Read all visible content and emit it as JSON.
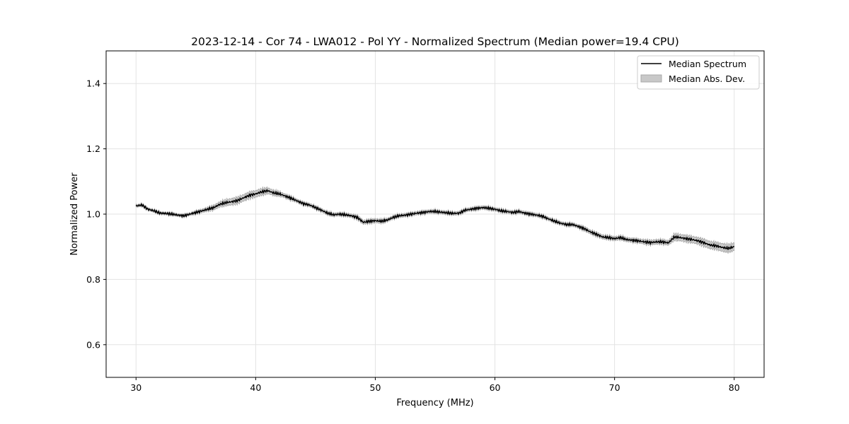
{
  "chart_data": {
    "type": "line",
    "title": "2023-12-14 - Cor 74 - LWA012 - Pol YY - Normalized Spectrum (Median power=19.4 CPU)",
    "xlabel": "Frequency (MHz)",
    "ylabel": "Normalized Power",
    "xlim": [
      27.5,
      82.5
    ],
    "ylim": [
      0.5,
      1.5
    ],
    "xticks": [
      30,
      40,
      50,
      60,
      70,
      80
    ],
    "xtick_labels": [
      "30",
      "40",
      "50",
      "60",
      "70",
      "80"
    ],
    "yticks": [
      0.6,
      0.8,
      1.0,
      1.2,
      1.4
    ],
    "ytick_labels": [
      "0.6",
      "0.8",
      "1.0",
      "1.2",
      "1.4"
    ],
    "grid": true,
    "legend_position": "top-right",
    "series": [
      {
        "name": "Median Spectrum",
        "color": "#000000",
        "x": [
          30,
          30.5,
          31,
          31.5,
          32,
          32.5,
          33,
          33.5,
          34,
          34.5,
          35,
          35.5,
          36,
          36.5,
          37,
          37.5,
          38,
          38.5,
          39,
          39.5,
          40,
          40.5,
          41,
          41.5,
          42,
          42.5,
          43,
          43.5,
          44,
          44.5,
          45,
          45.5,
          46,
          46.5,
          47,
          47.5,
          48,
          48.5,
          49,
          49.5,
          50,
          50.5,
          51,
          51.5,
          52,
          52.5,
          53,
          53.5,
          54,
          54.5,
          55,
          55.5,
          56,
          56.5,
          57,
          57.5,
          58,
          58.5,
          59,
          59.5,
          60,
          60.5,
          61,
          61.5,
          62,
          62.5,
          63,
          63.5,
          64,
          64.5,
          65,
          65.5,
          66,
          66.5,
          67,
          67.5,
          68,
          68.5,
          69,
          69.5,
          70,
          70.5,
          71,
          71.5,
          72,
          72.5,
          73,
          73.5,
          74,
          74.5,
          75,
          75.5,
          76,
          76.5,
          77,
          77.5,
          78,
          78.5,
          79,
          79.5,
          80
        ],
        "values": [
          1.025,
          1.028,
          1.015,
          1.01,
          1.003,
          1.002,
          1.0,
          0.997,
          0.995,
          1.0,
          1.005,
          1.01,
          1.015,
          1.02,
          1.03,
          1.035,
          1.038,
          1.042,
          1.05,
          1.058,
          1.062,
          1.068,
          1.072,
          1.065,
          1.062,
          1.055,
          1.048,
          1.04,
          1.032,
          1.028,
          1.02,
          1.012,
          1.003,
          0.998,
          1.0,
          0.998,
          0.995,
          0.99,
          0.975,
          0.978,
          0.98,
          0.978,
          0.982,
          0.99,
          0.995,
          0.997,
          1.0,
          1.003,
          1.005,
          1.008,
          1.008,
          1.006,
          1.004,
          1.002,
          1.003,
          1.012,
          1.015,
          1.018,
          1.02,
          1.018,
          1.015,
          1.01,
          1.008,
          1.005,
          1.008,
          1.003,
          1.0,
          0.997,
          0.993,
          0.985,
          0.978,
          0.972,
          0.968,
          0.968,
          0.962,
          0.955,
          0.945,
          0.938,
          0.93,
          0.928,
          0.925,
          0.928,
          0.922,
          0.92,
          0.918,
          0.915,
          0.913,
          0.915,
          0.915,
          0.912,
          0.93,
          0.928,
          0.925,
          0.922,
          0.918,
          0.912,
          0.905,
          0.903,
          0.898,
          0.895,
          0.9
        ],
        "mad": [
          0.004,
          0.004,
          0.004,
          0.004,
          0.004,
          0.004,
          0.004,
          0.004,
          0.004,
          0.004,
          0.005,
          0.005,
          0.006,
          0.007,
          0.008,
          0.009,
          0.01,
          0.01,
          0.01,
          0.01,
          0.01,
          0.01,
          0.009,
          0.008,
          0.007,
          0.006,
          0.006,
          0.005,
          0.005,
          0.005,
          0.005,
          0.005,
          0.005,
          0.005,
          0.005,
          0.005,
          0.005,
          0.006,
          0.006,
          0.006,
          0.006,
          0.006,
          0.005,
          0.005,
          0.005,
          0.005,
          0.005,
          0.005,
          0.005,
          0.005,
          0.005,
          0.005,
          0.005,
          0.005,
          0.005,
          0.005,
          0.005,
          0.005,
          0.005,
          0.005,
          0.005,
          0.005,
          0.005,
          0.005,
          0.005,
          0.005,
          0.005,
          0.005,
          0.005,
          0.005,
          0.005,
          0.005,
          0.005,
          0.005,
          0.005,
          0.006,
          0.006,
          0.006,
          0.006,
          0.006,
          0.006,
          0.006,
          0.006,
          0.006,
          0.006,
          0.007,
          0.007,
          0.007,
          0.007,
          0.007,
          0.01,
          0.01,
          0.01,
          0.01,
          0.01,
          0.011,
          0.011,
          0.011,
          0.012,
          0.012,
          0.012
        ]
      }
    ],
    "legend": [
      {
        "label": "Median Spectrum",
        "kind": "line",
        "color": "#000000"
      },
      {
        "label": "Median Abs. Dev.",
        "kind": "patch",
        "color": "#c8c8c8"
      }
    ]
  }
}
